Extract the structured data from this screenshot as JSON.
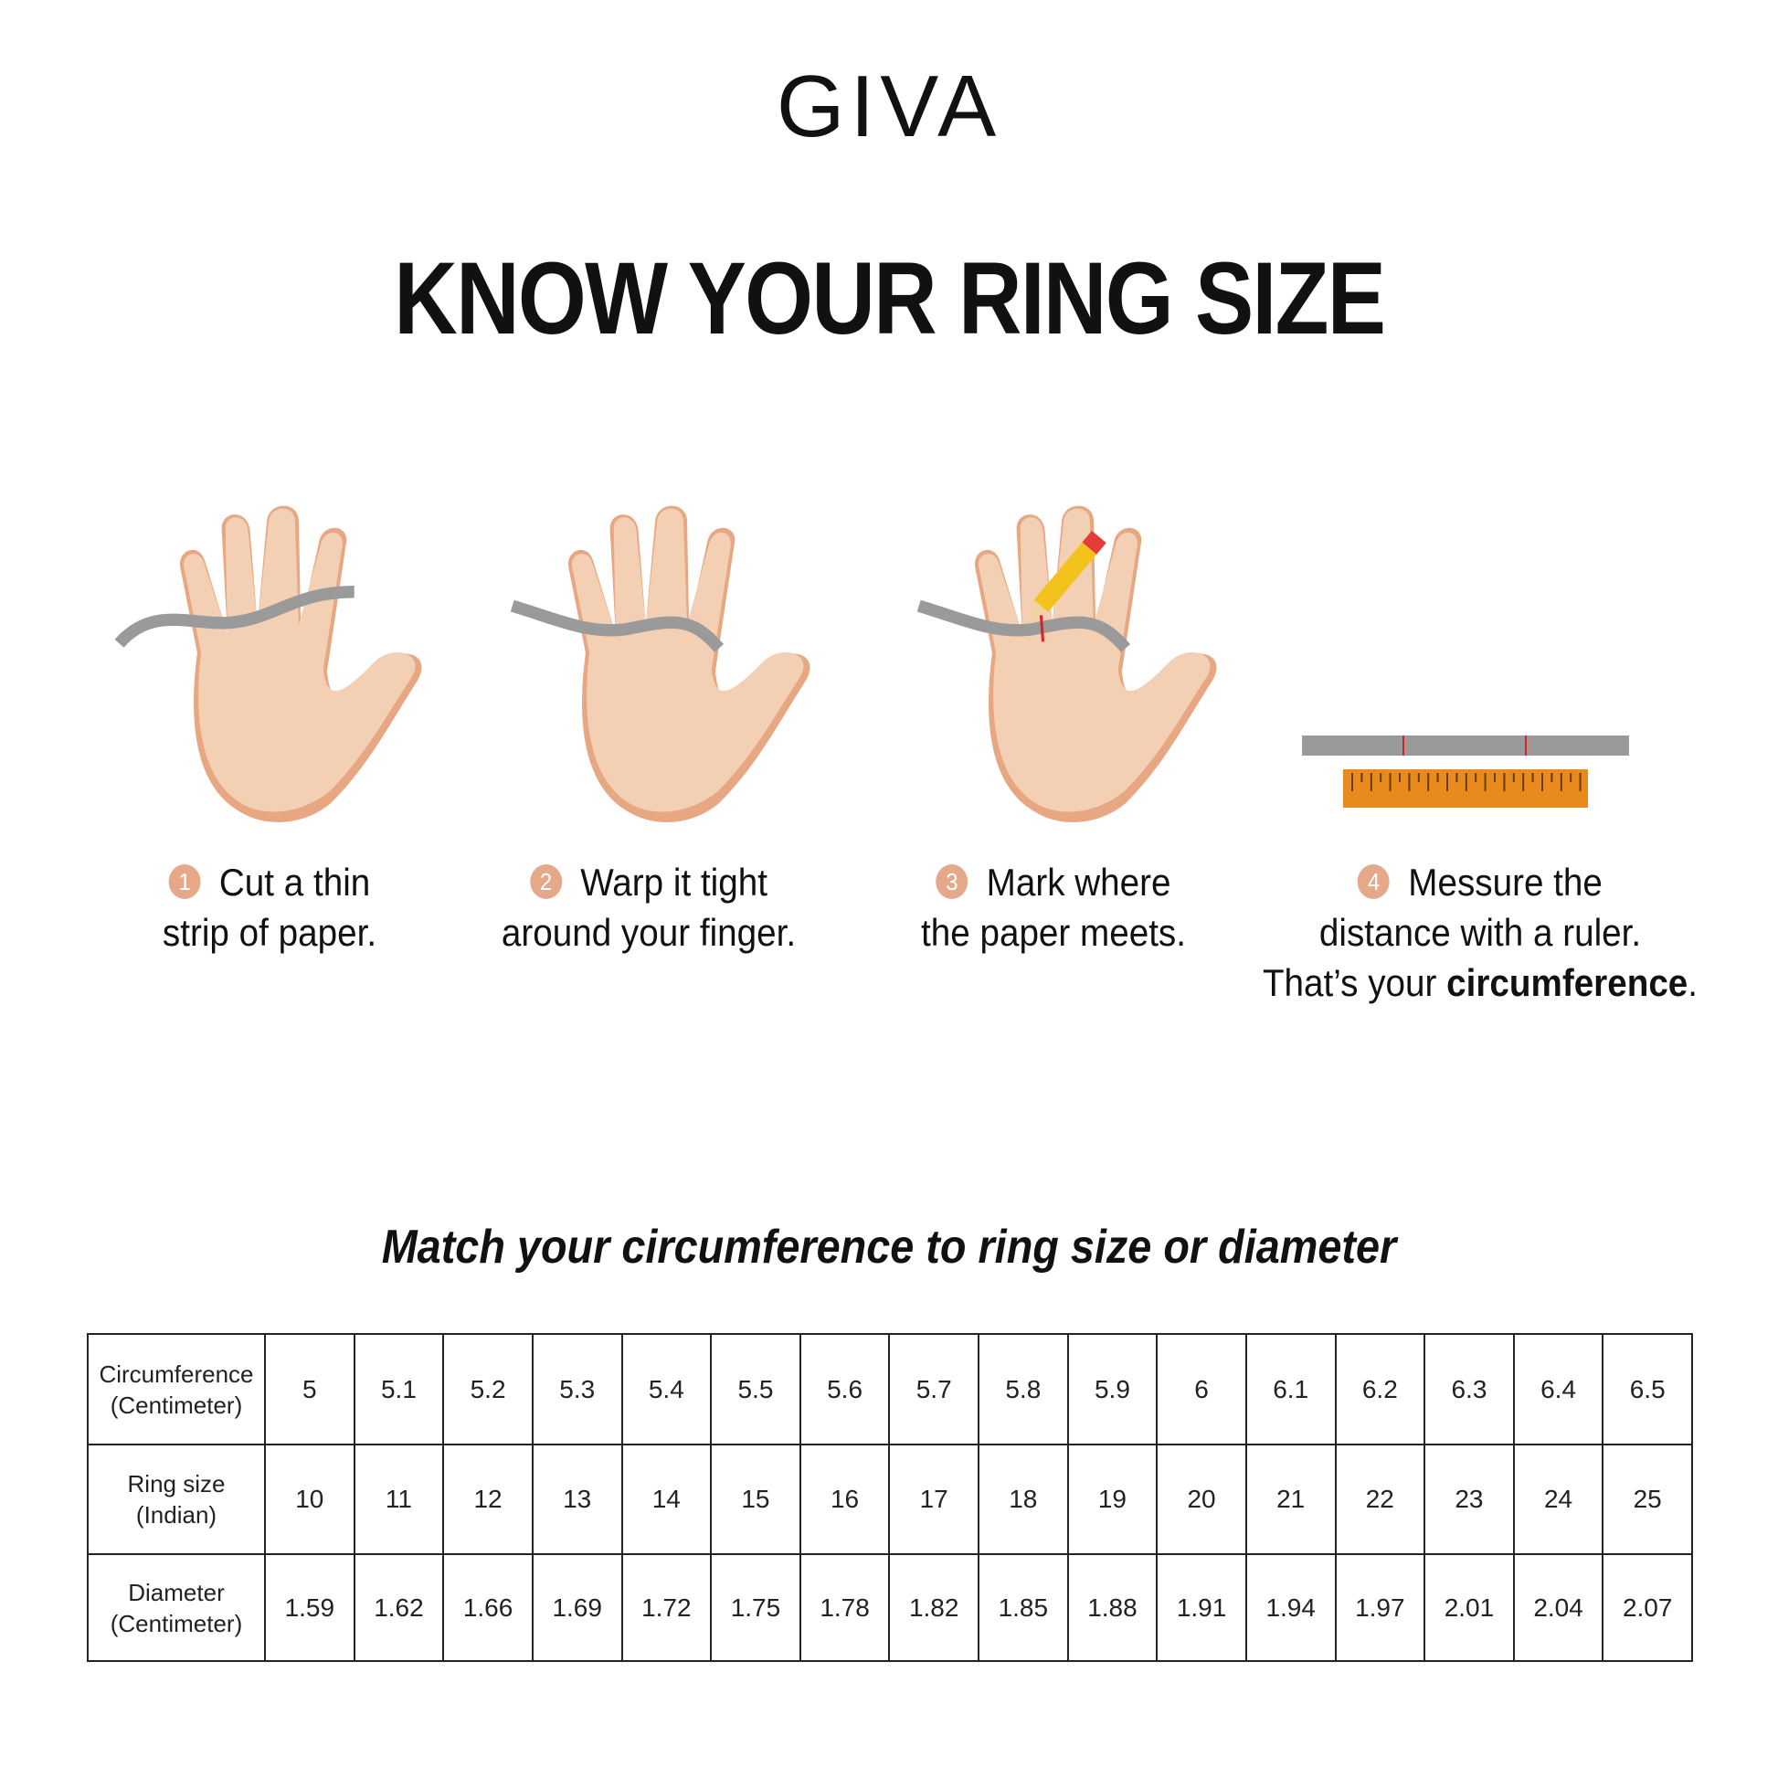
{
  "brand": {
    "logo": "GIVA"
  },
  "title": "KNOW YOUR RING SIZE",
  "steps": [
    {
      "num": "1",
      "line1": "Cut a thin",
      "line2": "strip of paper."
    },
    {
      "num": "2",
      "line1": "Warp it tight",
      "line2": "around your finger."
    },
    {
      "num": "3",
      "line1": "Mark where",
      "line2": "the paper meets."
    },
    {
      "num": "4",
      "line1": "Messure the",
      "line2": "distance with a ruler.",
      "line3_pre": "That’s your ",
      "line3_bold": "circumference",
      "line3_post": "."
    }
  ],
  "subtitle": "Match your circumference to ring size or diameter",
  "table": {
    "rows": [
      {
        "h1": "Circumference",
        "h2": "(Centimeter)",
        "values": [
          "5",
          "5.1",
          "5.2",
          "5.3",
          "5.4",
          "5.5",
          "5.6",
          "5.7",
          "5.8",
          "5.9",
          "6",
          "6.1",
          "6.2",
          "6.3",
          "6.4",
          "6.5"
        ]
      },
      {
        "h1": "Ring size",
        "h2": "(Indian)",
        "values": [
          "10",
          "11",
          "12",
          "13",
          "14",
          "15",
          "16",
          "17",
          "18",
          "19",
          "20",
          "21",
          "22",
          "23",
          "24",
          "25"
        ]
      },
      {
        "h1": "Diameter",
        "h2": "(Centimeter)",
        "values": [
          "1.59",
          "1.62",
          "1.66",
          "1.69",
          "1.72",
          "1.75",
          "1.78",
          "1.82",
          "1.85",
          "1.88",
          "1.91",
          "1.94",
          "1.97",
          "2.01",
          "2.04",
          "2.07"
        ]
      }
    ]
  },
  "colors": {
    "skin": "#f3cfb4",
    "skin_shadow": "#e7a783",
    "paper": "#9a9a9a",
    "badge": "#e5a98a",
    "ruler": "#e98a1c"
  },
  "icons": [
    "hand-paper-strip",
    "hand-wrap",
    "hand-pencil-mark",
    "ruler"
  ]
}
